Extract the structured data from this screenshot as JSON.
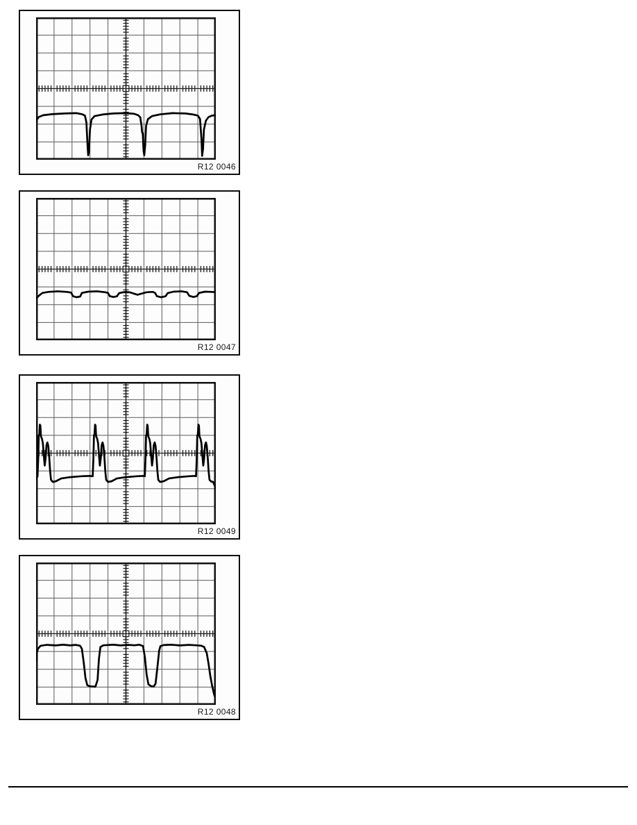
{
  "page": {
    "kind": "scanned service-manual page with oscilloscope figures",
    "background": "#ffffff"
  },
  "colors": {
    "trace": "#000000",
    "grid_line": "#5a5a5a",
    "axis": "#1c1c1c",
    "graticule_border": "#111111",
    "figure_border": "#0d0d0d",
    "footer_rule": "#000000"
  },
  "panels": [
    {
      "label": "R12 0046",
      "chart_data": {
        "type": "line",
        "title": "R12 0046",
        "grid": {
          "cols": 10,
          "rows": 8,
          "center_axes": true,
          "tick_clusters": true
        },
        "xlabel": "",
        "ylabel": "",
        "axis_units": "graticule divisions (x 0-10 left to right, y 0-8 top to bottom)",
        "description": "flat line about 1.4 div below center with three sharp narrow downward spikes",
        "series": [
          {
            "name": "trace",
            "points": [
              [
                0,
                5.8
              ],
              [
                0.15,
                5.6
              ],
              [
                0.4,
                5.5
              ],
              [
                0.9,
                5.44
              ],
              [
                1.6,
                5.4
              ],
              [
                2.25,
                5.38
              ],
              [
                2.55,
                5.44
              ],
              [
                2.72,
                5.52
              ],
              [
                2.8,
                5.9
              ],
              [
                2.87,
                7.3
              ],
              [
                2.9,
                7.75
              ],
              [
                2.94,
                7.6
              ],
              [
                3.0,
                6.3
              ],
              [
                3.08,
                5.75
              ],
              [
                3.25,
                5.55
              ],
              [
                3.7,
                5.46
              ],
              [
                4.3,
                5.4
              ],
              [
                5.0,
                5.38
              ],
              [
                5.45,
                5.42
              ],
              [
                5.68,
                5.5
              ],
              [
                5.8,
                5.62
              ],
              [
                5.87,
                6.1
              ],
              [
                5.9,
                6.45
              ],
              [
                5.94,
                6.55
              ],
              [
                5.98,
                7.5
              ],
              [
                6.02,
                7.75
              ],
              [
                6.07,
                7.2
              ],
              [
                6.12,
                6.1
              ],
              [
                6.22,
                5.72
              ],
              [
                6.45,
                5.55
              ],
              [
                6.9,
                5.45
              ],
              [
                7.6,
                5.38
              ],
              [
                8.3,
                5.4
              ],
              [
                8.75,
                5.46
              ],
              [
                9.0,
                5.52
              ],
              [
                9.12,
                5.7
              ],
              [
                9.2,
                6.8
              ],
              [
                9.24,
                7.78
              ],
              [
                9.29,
                7.4
              ],
              [
                9.34,
                6.3
              ],
              [
                9.45,
                5.8
              ],
              [
                9.6,
                5.6
              ],
              [
                9.8,
                5.52
              ],
              [
                10,
                5.5
              ]
            ]
          }
        ]
      }
    },
    {
      "label": "R12 0047",
      "chart_data": {
        "type": "line",
        "title": "R12 0047",
        "grid": {
          "cols": 10,
          "rows": 8,
          "center_axes": true,
          "tick_clusters": true
        },
        "xlabel": "",
        "ylabel": "",
        "axis_units": "graticule divisions (x 0-10 left to right, y 0-8 top to bottom)",
        "description": "nearly flat line about 1.3 div below center with small shallow periodic dips",
        "series": [
          {
            "name": "trace",
            "points": [
              [
                0,
                5.66
              ],
              [
                0.15,
                5.5
              ],
              [
                0.35,
                5.34
              ],
              [
                0.7,
                5.28
              ],
              [
                1.2,
                5.25
              ],
              [
                1.7,
                5.28
              ],
              [
                1.95,
                5.32
              ],
              [
                2.05,
                5.52
              ],
              [
                2.25,
                5.58
              ],
              [
                2.45,
                5.54
              ],
              [
                2.55,
                5.34
              ],
              [
                2.9,
                5.27
              ],
              [
                3.4,
                5.25
              ],
              [
                3.85,
                5.3
              ],
              [
                4.0,
                5.34
              ],
              [
                4.1,
                5.52
              ],
              [
                4.3,
                5.57
              ],
              [
                4.5,
                5.53
              ],
              [
                4.62,
                5.35
              ],
              [
                4.95,
                5.28
              ],
              [
                5.2,
                5.3
              ],
              [
                5.45,
                5.38
              ],
              [
                5.65,
                5.44
              ],
              [
                5.85,
                5.38
              ],
              [
                6.15,
                5.3
              ],
              [
                6.5,
                5.28
              ],
              [
                6.62,
                5.34
              ],
              [
                6.72,
                5.52
              ],
              [
                6.95,
                5.58
              ],
              [
                7.2,
                5.53
              ],
              [
                7.32,
                5.35
              ],
              [
                7.65,
                5.27
              ],
              [
                8.1,
                5.25
              ],
              [
                8.4,
                5.3
              ],
              [
                8.52,
                5.5
              ],
              [
                8.75,
                5.57
              ],
              [
                8.95,
                5.52
              ],
              [
                9.07,
                5.34
              ],
              [
                9.4,
                5.27
              ],
              [
                9.75,
                5.28
              ],
              [
                10,
                5.3
              ]
            ]
          }
        ]
      }
    },
    {
      "label": "R12 0049",
      "chart_data": {
        "type": "line",
        "title": "R12 0049",
        "grid": {
          "cols": 10,
          "rows": 8,
          "center_axes": true,
          "tick_clusters": true
        },
        "xlabel": "",
        "ylabel": "",
        "axis_units": "graticule divisions (x 0-10 left to right, y 0-8 top to bottom)",
        "description": "baseline about 1.3 div below center with four tall spiky bursts (double-hump) rising about 1.6 div above center",
        "series": [
          {
            "name": "trace",
            "points": [
              [
                0,
                5.45
              ],
              [
                0.08,
                5.3
              ],
              [
                0.12,
                4.3
              ],
              [
                0.15,
                3.0
              ],
              [
                0.18,
                2.95
              ],
              [
                0.21,
                2.4
              ],
              [
                0.24,
                2.45
              ],
              [
                0.27,
                3.05
              ],
              [
                0.33,
                3.2
              ],
              [
                0.38,
                3.45
              ],
              [
                0.43,
                4.1
              ],
              [
                0.48,
                4.7
              ],
              [
                0.53,
                4.3
              ],
              [
                0.58,
                3.55
              ],
              [
                0.63,
                3.4
              ],
              [
                0.68,
                3.6
              ],
              [
                0.73,
                4.2
              ],
              [
                0.78,
                5.0
              ],
              [
                0.83,
                5.5
              ],
              [
                0.93,
                5.62
              ],
              [
                1.1,
                5.58
              ],
              [
                1.4,
                5.42
              ],
              [
                1.9,
                5.35
              ],
              [
                2.5,
                5.3
              ],
              [
                3.0,
                5.28
              ],
              [
                3.15,
                5.3
              ],
              [
                3.19,
                4.3
              ],
              [
                3.22,
                3.0
              ],
              [
                3.25,
                2.95
              ],
              [
                3.28,
                2.4
              ],
              [
                3.31,
                2.45
              ],
              [
                3.34,
                3.05
              ],
              [
                3.4,
                3.2
              ],
              [
                3.45,
                3.45
              ],
              [
                3.5,
                4.1
              ],
              [
                3.55,
                4.7
              ],
              [
                3.6,
                4.3
              ],
              [
                3.65,
                3.55
              ],
              [
                3.7,
                3.4
              ],
              [
                3.75,
                3.6
              ],
              [
                3.8,
                4.2
              ],
              [
                3.85,
                5.0
              ],
              [
                3.9,
                5.5
              ],
              [
                4.0,
                5.62
              ],
              [
                4.2,
                5.58
              ],
              [
                4.5,
                5.42
              ],
              [
                5.0,
                5.35
              ],
              [
                5.6,
                5.3
              ],
              [
                5.95,
                5.28
              ],
              [
                6.05,
                5.3
              ],
              [
                6.09,
                4.3
              ],
              [
                6.12,
                3.0
              ],
              [
                6.15,
                2.95
              ],
              [
                6.18,
                2.4
              ],
              [
                6.21,
                2.45
              ],
              [
                6.24,
                3.05
              ],
              [
                6.3,
                3.2
              ],
              [
                6.35,
                3.45
              ],
              [
                6.4,
                4.1
              ],
              [
                6.45,
                4.7
              ],
              [
                6.5,
                4.3
              ],
              [
                6.55,
                3.55
              ],
              [
                6.6,
                3.4
              ],
              [
                6.65,
                3.6
              ],
              [
                6.7,
                4.2
              ],
              [
                6.75,
                5.0
              ],
              [
                6.8,
                5.5
              ],
              [
                6.9,
                5.62
              ],
              [
                7.1,
                5.58
              ],
              [
                7.4,
                5.42
              ],
              [
                7.9,
                5.35
              ],
              [
                8.5,
                5.3
              ],
              [
                8.8,
                5.28
              ],
              [
                8.9,
                5.3
              ],
              [
                8.94,
                4.3
              ],
              [
                8.97,
                3.0
              ],
              [
                9.0,
                2.95
              ],
              [
                9.03,
                2.4
              ],
              [
                9.06,
                2.45
              ],
              [
                9.09,
                3.05
              ],
              [
                9.15,
                3.2
              ],
              [
                9.2,
                3.45
              ],
              [
                9.25,
                4.1
              ],
              [
                9.3,
                4.7
              ],
              [
                9.35,
                4.3
              ],
              [
                9.4,
                3.55
              ],
              [
                9.45,
                3.4
              ],
              [
                9.5,
                3.6
              ],
              [
                9.55,
                4.2
              ],
              [
                9.6,
                5.0
              ],
              [
                9.65,
                5.5
              ],
              [
                9.75,
                5.6
              ],
              [
                9.85,
                5.62
              ],
              [
                9.95,
                5.85
              ],
              [
                10,
                6.0
              ]
            ]
          }
        ]
      }
    },
    {
      "label": "R12 0048",
      "chart_data": {
        "type": "line",
        "title": "R12 0048",
        "grid": {
          "cols": 10,
          "rows": 8,
          "center_axes": true,
          "tick_clusters": true
        },
        "xlabel": "",
        "ylabel": "",
        "axis_units": "graticule divisions (x 0-10 left to right, y 0-8 top to bottom)",
        "description": "flat line about 0.7 div below center with two wide rounded square dips and a falling edge at far right",
        "series": [
          {
            "name": "trace",
            "points": [
              [
                0,
                5.55
              ],
              [
                0.04,
                5.1
              ],
              [
                0.1,
                4.85
              ],
              [
                0.25,
                4.68
              ],
              [
                0.6,
                4.63
              ],
              [
                1.1,
                4.66
              ],
              [
                1.5,
                4.62
              ],
              [
                1.9,
                4.66
              ],
              [
                2.2,
                4.63
              ],
              [
                2.45,
                4.68
              ],
              [
                2.55,
                4.85
              ],
              [
                2.65,
                5.6
              ],
              [
                2.75,
                6.5
              ],
              [
                2.85,
                6.9
              ],
              [
                3.0,
                6.96
              ],
              [
                3.3,
                6.98
              ],
              [
                3.42,
                6.6
              ],
              [
                3.5,
                5.4
              ],
              [
                3.58,
                4.75
              ],
              [
                3.75,
                4.65
              ],
              [
                4.3,
                4.62
              ],
              [
                4.7,
                4.66
              ],
              [
                5.1,
                4.63
              ],
              [
                5.5,
                4.65
              ],
              [
                5.75,
                4.62
              ],
              [
                5.95,
                4.7
              ],
              [
                6.05,
                5.3
              ],
              [
                6.15,
                6.3
              ],
              [
                6.25,
                6.85
              ],
              [
                6.4,
                6.95
              ],
              [
                6.55,
                6.97
              ],
              [
                6.65,
                6.8
              ],
              [
                6.75,
                5.9
              ],
              [
                6.85,
                4.95
              ],
              [
                6.92,
                4.7
              ],
              [
                7.1,
                4.64
              ],
              [
                7.5,
                4.62
              ],
              [
                8.0,
                4.66
              ],
              [
                8.5,
                4.63
              ],
              [
                8.9,
                4.65
              ],
              [
                9.2,
                4.68
              ],
              [
                9.35,
                4.75
              ],
              [
                9.5,
                5.1
              ],
              [
                9.6,
                5.7
              ],
              [
                9.7,
                6.4
              ],
              [
                9.8,
                6.95
              ],
              [
                9.88,
                7.3
              ],
              [
                9.93,
                7.5
              ]
            ]
          }
        ]
      }
    }
  ]
}
